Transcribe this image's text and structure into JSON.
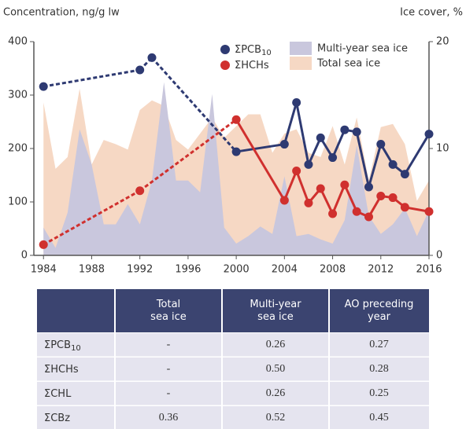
{
  "chart_data": {
    "type": "combo",
    "y_label": "Concentration, ng/g lw",
    "y2_label": "Ice cover, %",
    "xlim": [
      1983.2,
      2016
    ],
    "xticks": [
      1984,
      1988,
      1992,
      1996,
      2000,
      2004,
      2008,
      2012,
      2016
    ],
    "ylim": [
      0,
      400
    ],
    "yticks": [
      0,
      100,
      200,
      300,
      400
    ],
    "y2lim": [
      0,
      20
    ],
    "y2ticks": [
      0,
      10,
      20
    ],
    "dashed_until_x": 2000,
    "series": [
      {
        "name": "Total sea ice",
        "kind": "area",
        "axis": "y2",
        "color": "#f6d8c4",
        "x": [
          1984,
          1985,
          1986,
          1987,
          1988,
          1989,
          1990,
          1991,
          1992,
          1993,
          1994,
          1995,
          1996,
          1997,
          1998,
          1999,
          2000,
          2001,
          2002,
          2003,
          2004,
          2005,
          2006,
          2007,
          2008,
          2009,
          2010,
          2011,
          2012,
          2013,
          2014,
          2015,
          2016
        ],
        "values": [
          14.3,
          8.1,
          9.2,
          15.6,
          8.5,
          10.8,
          10.4,
          9.9,
          13.6,
          14.5,
          14,
          10.8,
          9.9,
          11.4,
          12.9,
          11,
          12.1,
          13.2,
          13.2,
          9.6,
          11.4,
          11.8,
          9.6,
          9.2,
          12.1,
          8.5,
          12.9,
          7,
          12,
          12.3,
          10.4,
          5.1,
          7
        ]
      },
      {
        "name": "Multi-year sea ice",
        "kind": "area",
        "axis": "y2",
        "color": "#c9c7dd",
        "x": [
          1984,
          1985,
          1986,
          1987,
          1988,
          1989,
          1990,
          1991,
          1992,
          1993,
          1994,
          1995,
          1996,
          1997,
          1998,
          1999,
          2000,
          2001,
          2002,
          2003,
          2004,
          2005,
          2006,
          2007,
          2008,
          2009,
          2010,
          2011,
          2012,
          2013,
          2014,
          2015,
          2016
        ],
        "values": [
          2.6,
          0.7,
          4,
          11.8,
          8.5,
          2.9,
          2.9,
          4.8,
          2.9,
          7,
          16.2,
          7,
          7,
          5.9,
          15.1,
          2.6,
          1.1,
          1.8,
          2.7,
          2,
          7.4,
          1.8,
          2,
          1.5,
          1.1,
          3.3,
          10.3,
          3.7,
          2,
          2.9,
          4.4,
          1.8,
          4.2
        ]
      },
      {
        "name": "ΣPCB",
        "name_sub": "10",
        "kind": "line",
        "color": "#2e3a72",
        "x": [
          1984,
          1992,
          1993,
          2000,
          2004,
          2005,
          2006,
          2007,
          2008,
          2009,
          2010,
          2011,
          2012,
          2013,
          2014,
          2016
        ],
        "values": [
          316,
          347,
          370,
          194,
          208,
          286,
          170,
          220,
          183,
          235,
          231,
          128,
          208,
          170,
          152,
          227
        ]
      },
      {
        "name": "ΣHCHs",
        "kind": "line",
        "color": "#d0302e",
        "x": [
          1984,
          1992,
          2000,
          2004,
          2005,
          2006,
          2007,
          2008,
          2009,
          2010,
          2011,
          2012,
          2013,
          2014,
          2016
        ],
        "values": [
          20,
          121,
          254,
          103,
          158,
          98,
          125,
          78,
          132,
          82,
          72,
          111,
          108,
          90,
          82
        ]
      }
    ]
  },
  "table": {
    "header": [
      "Total\nsea ice",
      "Multi-year\nsea ice",
      "AO preceding\nyear"
    ],
    "rows": [
      {
        "label": "ΣPCB",
        "label_sub": "10",
        "cells": [
          "-",
          "0.26",
          "0.27"
        ]
      },
      {
        "label": "ΣHCHs",
        "cells": [
          "-",
          "0.50",
          "0.28"
        ]
      },
      {
        "label": "ΣCHL",
        "cells": [
          "-",
          "0.26",
          "0.25"
        ]
      },
      {
        "label": "ΣCBz",
        "cells": [
          "0.36",
          "0.52",
          "0.45"
        ]
      }
    ]
  }
}
